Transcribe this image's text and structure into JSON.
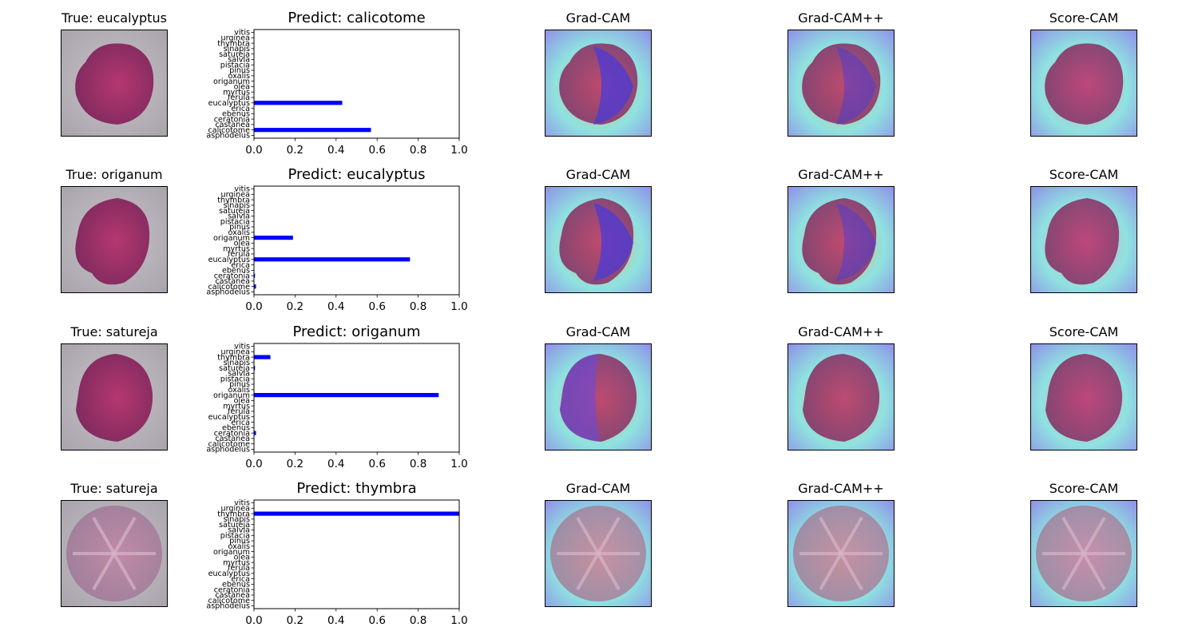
{
  "colors": {
    "bar": "#0000ff",
    "axis": "#000000",
    "background": "#ffffff"
  },
  "chart_data": [
    {
      "type": "bar",
      "orientation": "horizontal",
      "true_label": "True: eucalyptus",
      "title": "Predict: calicotome",
      "categories": [
        "asphodelus",
        "calicotome",
        "castanea",
        "ceratonia",
        "ebenus",
        "erica",
        "eucalyptus",
        "ferula",
        "myrtus",
        "olea",
        "origanum",
        "oxalis",
        "pinus",
        "pistacia",
        "salvia",
        "satureja",
        "sinapis",
        "thymbra",
        "urginea",
        "vitis"
      ],
      "values": [
        0,
        0.57,
        0,
        0,
        0,
        0,
        0.43,
        0,
        0,
        0,
        0,
        0,
        0,
        0,
        0,
        0,
        0,
        0,
        0,
        0
      ],
      "xlim": [
        0,
        1.0
      ],
      "xticks": [
        "0.0",
        "0.2",
        "0.4",
        "0.6",
        "0.8",
        "1.0"
      ],
      "cam_titles": [
        "Grad-CAM",
        "Grad-CAM++",
        "Score-CAM"
      ]
    },
    {
      "type": "bar",
      "orientation": "horizontal",
      "true_label": "True: origanum",
      "title": "Predict: eucalyptus",
      "categories": [
        "asphodelus",
        "calicotome",
        "castanea",
        "ceratonia",
        "ebenus",
        "erica",
        "eucalyptus",
        "ferula",
        "myrtus",
        "olea",
        "origanum",
        "oxalis",
        "pinus",
        "pistacia",
        "salvia",
        "satureja",
        "sinapis",
        "thymbra",
        "urginea",
        "vitis"
      ],
      "values": [
        0,
        0.01,
        0,
        0.005,
        0,
        0,
        0.76,
        0,
        0,
        0,
        0.19,
        0,
        0,
        0,
        0,
        0,
        0,
        0,
        0,
        0
      ],
      "xlim": [
        0,
        1.0
      ],
      "xticks": [
        "0.0",
        "0.2",
        "0.4",
        "0.6",
        "0.8",
        "1.0"
      ],
      "cam_titles": [
        "Grad-CAM",
        "Grad-CAM++",
        "Score-CAM"
      ]
    },
    {
      "type": "bar",
      "orientation": "horizontal",
      "true_label": "True: satureja",
      "title": "Predict: origanum",
      "categories": [
        "asphodelus",
        "calicotome",
        "castanea",
        "ceratonia",
        "ebenus",
        "erica",
        "eucalyptus",
        "ferula",
        "myrtus",
        "olea",
        "origanum",
        "oxalis",
        "pinus",
        "pistacia",
        "salvia",
        "satureja",
        "sinapis",
        "thymbra",
        "urginea",
        "vitis"
      ],
      "values": [
        0,
        0,
        0,
        0.01,
        0,
        0,
        0,
        0,
        0,
        0,
        0.9,
        0,
        0,
        0,
        0,
        0.005,
        0,
        0.08,
        0,
        0
      ],
      "xlim": [
        0,
        1.0
      ],
      "xticks": [
        "0.0",
        "0.2",
        "0.4",
        "0.6",
        "0.8",
        "1.0"
      ],
      "cam_titles": [
        "Grad-CAM",
        "Grad-CAM++",
        "Score-CAM"
      ]
    },
    {
      "type": "bar",
      "orientation": "horizontal",
      "true_label": "True: satureja",
      "title": "Predict: thymbra",
      "categories": [
        "asphodelus",
        "calicotome",
        "castanea",
        "ceratonia",
        "ebenus",
        "erica",
        "eucalyptus",
        "ferula",
        "myrtus",
        "olea",
        "origanum",
        "oxalis",
        "pinus",
        "pistacia",
        "salvia",
        "satureja",
        "sinapis",
        "thymbra",
        "urginea",
        "vitis"
      ],
      "values": [
        0,
        0,
        0,
        0,
        0,
        0,
        0,
        0,
        0,
        0,
        0,
        0,
        0,
        0,
        0,
        0,
        0,
        1.0,
        0,
        0
      ],
      "xlim": [
        0,
        1.0
      ],
      "xticks": [
        "0.0",
        "0.2",
        "0.4",
        "0.6",
        "0.8",
        "1.0"
      ],
      "cam_titles": [
        "Grad-CAM",
        "Grad-CAM++",
        "Score-CAM"
      ]
    }
  ]
}
